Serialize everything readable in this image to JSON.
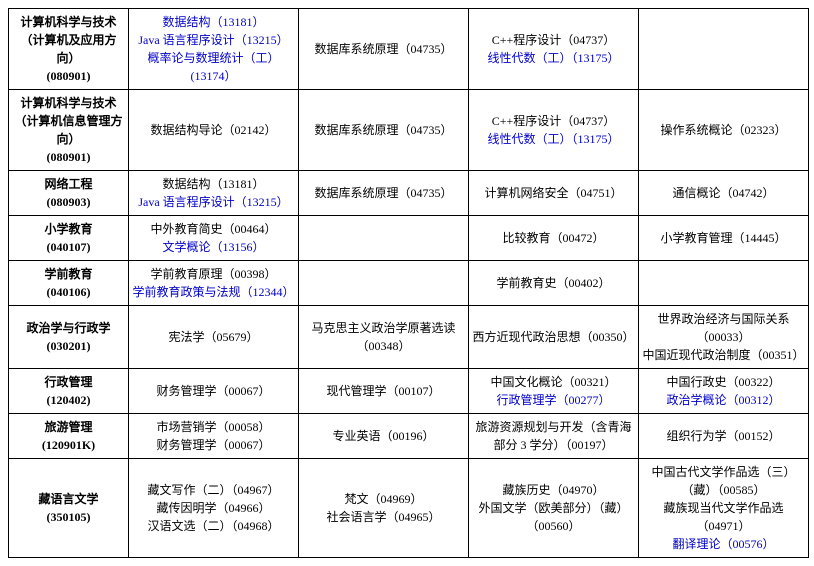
{
  "table": {
    "rows": [
      {
        "major": {
          "name": "计算机科学与技术（计算机及应用方向）",
          "code": "(080901)"
        },
        "c2": [
          {
            "text": "数据结构（13181）",
            "blue": true
          },
          {
            "text": "Java 语言程序设计（13215）",
            "blue": true
          },
          {
            "text": "概率论与数理统计（工）(13174）",
            "blue": true
          }
        ],
        "c3": [
          {
            "text": "数据库系统原理（04735）",
            "blue": false
          }
        ],
        "c4": [
          {
            "text": "C++程序设计（04737）",
            "blue": false
          },
          {
            "text": "线性代数（工）（13175）",
            "blue": true
          }
        ],
        "c5": []
      },
      {
        "major": {
          "name": "计算机科学与技术（计算机信息管理方向）",
          "code": "(080901)"
        },
        "c2": [
          {
            "text": "数据结构导论（02142）",
            "blue": false
          }
        ],
        "c3": [
          {
            "text": "数据库系统原理（04735）",
            "blue": false
          }
        ],
        "c4": [
          {
            "text": "C++程序设计（04737）",
            "blue": false
          },
          {
            "text": "线性代数（工）（13175）",
            "blue": true
          }
        ],
        "c5": [
          {
            "text": "操作系统概论（02323）",
            "blue": false
          }
        ]
      },
      {
        "major": {
          "name": "网络工程",
          "code": "(080903)"
        },
        "c2": [
          {
            "text": "数据结构（13181）",
            "blue": false
          },
          {
            "text": "Java 语言程序设计（13215）",
            "blue": true
          }
        ],
        "c3": [
          {
            "text": "数据库系统原理（04735）",
            "blue": false
          }
        ],
        "c4": [
          {
            "text": "计算机网络安全（04751）",
            "blue": false
          }
        ],
        "c5": [
          {
            "text": "通信概论（04742）",
            "blue": false
          }
        ]
      },
      {
        "major": {
          "name": "小学教育",
          "code": "(040107)"
        },
        "c2": [
          {
            "text": "中外教育简史（00464）",
            "blue": false
          },
          {
            "text": "文学概论（13156）",
            "blue": true
          }
        ],
        "c3": [],
        "c4": [
          {
            "text": "比较教育（00472）",
            "blue": false
          }
        ],
        "c5": [
          {
            "text": "小学教育管理（14445）",
            "blue": false
          }
        ]
      },
      {
        "major": {
          "name": "学前教育",
          "code": "(040106)"
        },
        "c2": [
          {
            "text": "学前教育原理（00398）",
            "blue": false
          },
          {
            "text": "学前教育政策与法规（12344）",
            "blue": true
          }
        ],
        "c3": [],
        "c4": [
          {
            "text": "学前教育史（00402）",
            "blue": false
          }
        ],
        "c5": []
      },
      {
        "major": {
          "name": "政治学与行政学",
          "code": "(030201)"
        },
        "c2": [
          {
            "text": "宪法学（05679）",
            "blue": false
          }
        ],
        "c3": [
          {
            "text": "马克思主义政治学原著选读（00348）",
            "blue": false
          }
        ],
        "c4": [
          {
            "text": "西方近现代政治思想（00350）",
            "blue": false
          }
        ],
        "c5": [
          {
            "text": "世界政治经济与国际关系（00033）",
            "blue": false
          },
          {
            "text": "中国近现代政治制度（00351）",
            "blue": false
          }
        ]
      },
      {
        "major": {
          "name": "行政管理",
          "code": "(120402)"
        },
        "c2": [
          {
            "text": "财务管理学（00067）",
            "blue": false
          }
        ],
        "c3": [
          {
            "text": "现代管理学（00107）",
            "blue": false
          }
        ],
        "c4": [
          {
            "text": "中国文化概论（00321）",
            "blue": false
          },
          {
            "text": "行政管理学（00277）",
            "blue": true
          }
        ],
        "c5": [
          {
            "text": "中国行政史（00322）",
            "blue": false
          },
          {
            "text": "政治学概论（00312）",
            "blue": true
          }
        ]
      },
      {
        "major": {
          "name": "旅游管理",
          "code": "(120901K)"
        },
        "c2": [
          {
            "text": "市场营销学（00058）",
            "blue": false
          },
          {
            "text": "财务管理学（00067）",
            "blue": false
          }
        ],
        "c3": [
          {
            "text": "专业英语（00196）",
            "blue": false
          }
        ],
        "c4": [
          {
            "text": "旅游资源规划与开发（含青海部分 3 学分）（00197）",
            "blue": false
          }
        ],
        "c5": [
          {
            "text": "组织行为学（00152）",
            "blue": false
          }
        ]
      },
      {
        "major": {
          "name": "藏语言文学",
          "code": "(350105)"
        },
        "c2": [
          {
            "text": "藏文写作（二）（04967）",
            "blue": false
          },
          {
            "text": "藏传因明学（04966）",
            "blue": false
          },
          {
            "text": "汉语文选（二）（04968）",
            "blue": false
          }
        ],
        "c3": [
          {
            "text": "梵文（04969）",
            "blue": false
          },
          {
            "text": "社会语言学（04965）",
            "blue": false
          }
        ],
        "c4": [
          {
            "text": "藏族历史（04970）",
            "blue": false
          },
          {
            "text": "外国文学（欧美部分）（藏）（00560）",
            "blue": false
          }
        ],
        "c5": [
          {
            "text": "中国古代文学作品选（三）（藏）（00585）",
            "blue": false
          },
          {
            "text": "藏族现当代文学作品选（04971）",
            "blue": false
          },
          {
            "text": "翻译理论（00576）",
            "blue": true
          }
        ]
      }
    ]
  }
}
